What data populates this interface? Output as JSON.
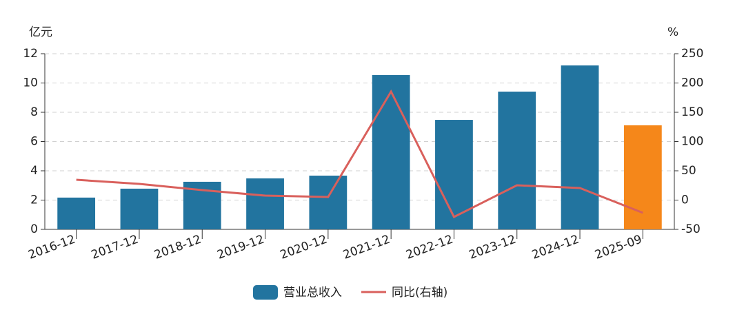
{
  "chart_data": {
    "type": "bar-line",
    "y_unit": "亿元",
    "y2_unit": "%",
    "categories": [
      "2016-12",
      "2017-12",
      "2018-12",
      "2019-12",
      "2020-12",
      "2021-12",
      "2022-12",
      "2023-12",
      "2024-12",
      "2025-09"
    ],
    "series": [
      {
        "name": "营业总收入",
        "type": "bar",
        "color": "#22749f",
        "colors": [
          "#22749f",
          "#22749f",
          "#22749f",
          "#22749f",
          "#22749f",
          "#22749f",
          "#22749f",
          "#22749f",
          "#22749f",
          "#f5871a"
        ],
        "values": [
          2.17,
          2.78,
          3.25,
          3.48,
          3.67,
          10.54,
          7.48,
          9.41,
          11.2,
          7.11
        ]
      },
      {
        "name": "同比(右轴)",
        "type": "line",
        "color": "#d9605c",
        "axis": "y2",
        "values": [
          34.7,
          27.6,
          17,
          7.6,
          5.3,
          185.3,
          -28.8,
          25.3,
          20.6,
          -21.8
        ]
      }
    ],
    "ylim": [
      0,
      12
    ],
    "yticks": [
      0,
      2,
      4,
      6,
      8,
      10,
      12
    ],
    "y2lim": [
      -50,
      250
    ],
    "y2ticks": [
      -50,
      0,
      50,
      100,
      150,
      200,
      250
    ],
    "grid": true
  }
}
